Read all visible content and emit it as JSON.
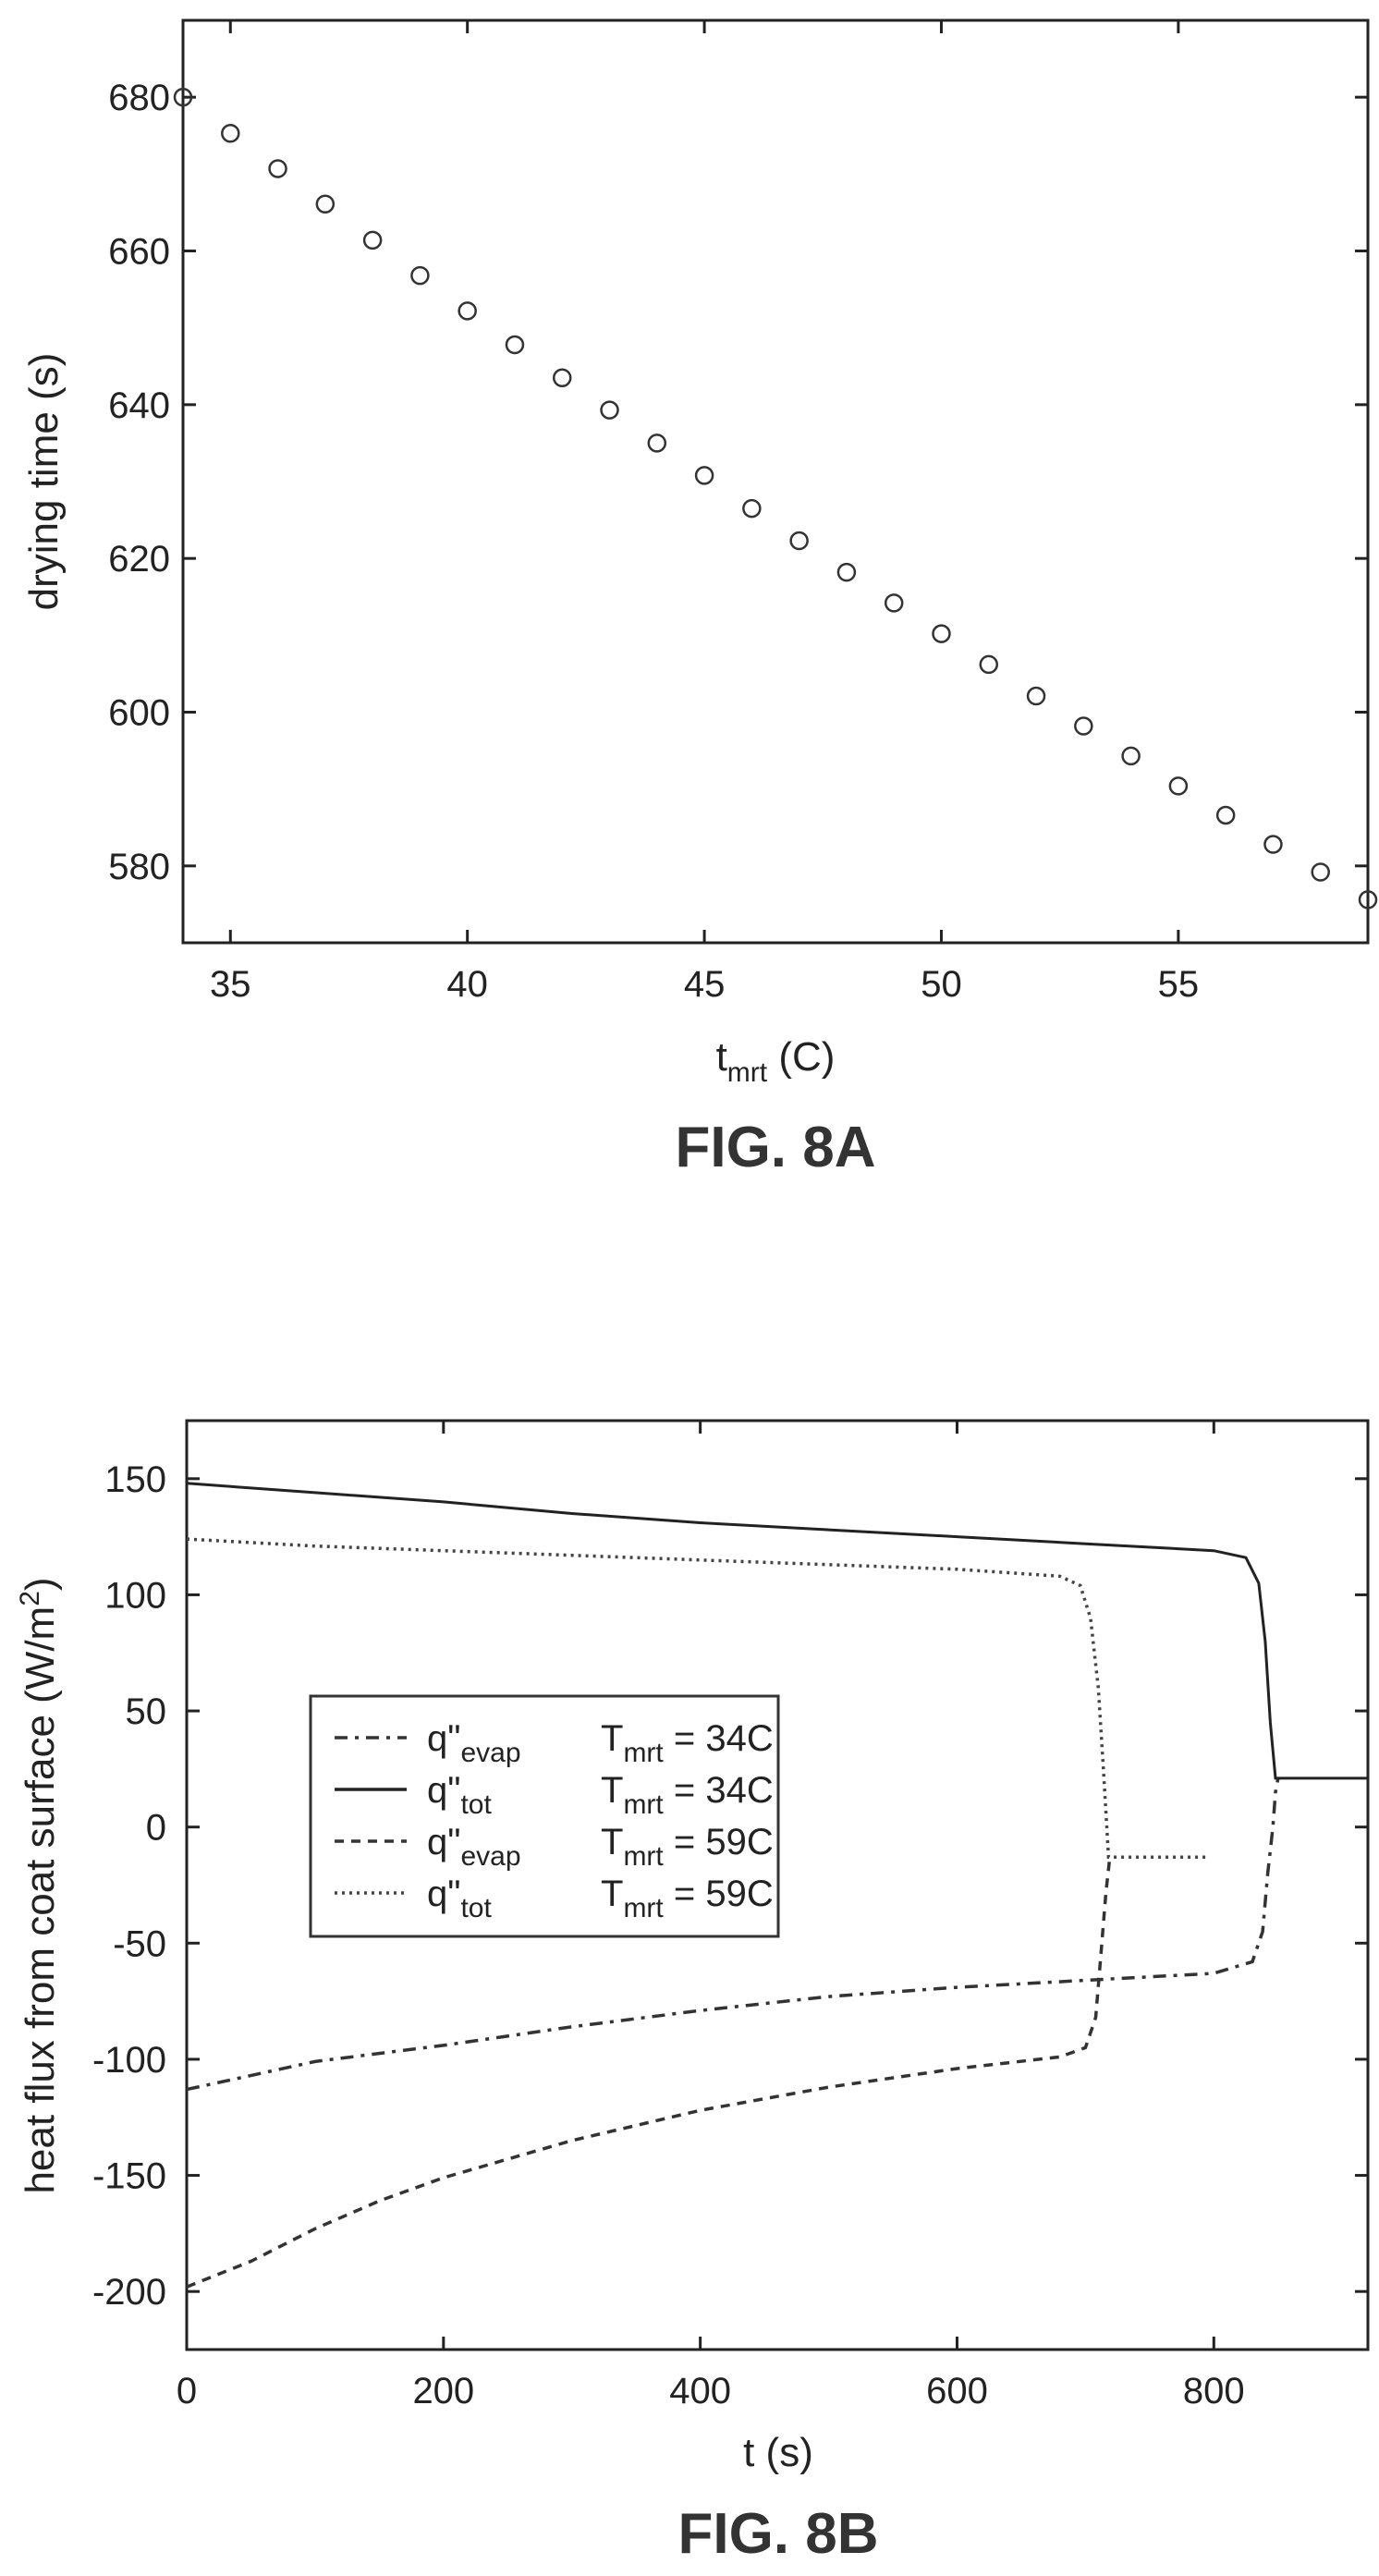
{
  "chart_data": [
    {
      "type": "scatter",
      "figure_label": "FIG. 8A",
      "xlabel": {
        "base": "t",
        "sub": "mrt",
        "unit": " (C)"
      },
      "ylabel": "drying time (s)",
      "xlim": [
        34,
        59
      ],
      "ylim": [
        570,
        690
      ],
      "xticks": [
        35,
        40,
        45,
        50,
        55
      ],
      "yticks": [
        580,
        600,
        620,
        640,
        660,
        680
      ],
      "marker": "circle-open",
      "grid": false,
      "x": [
        34,
        35,
        36,
        37,
        38,
        39,
        40,
        41,
        42,
        43,
        44,
        45,
        46,
        47,
        48,
        49,
        50,
        51,
        52,
        53,
        54,
        55,
        56,
        57,
        58,
        59
      ],
      "y": [
        680,
        675.3,
        670.7,
        666.1,
        661.4,
        656.8,
        652.2,
        647.8,
        643.5,
        639.3,
        635.0,
        630.8,
        626.5,
        622.3,
        618.2,
        614.2,
        610.2,
        606.2,
        602.1,
        598.2,
        594.3,
        590.4,
        586.6,
        582.8,
        579.2,
        575.6
      ]
    },
    {
      "type": "line",
      "figure_label": "FIG. 8B",
      "xlabel": "t (s)",
      "ylabel": {
        "text": "heat flux from coat surface (W/m",
        "sup": "2",
        "close": ")"
      },
      "xlim": [
        0,
        920
      ],
      "ylim": [
        -225,
        175
      ],
      "xticks": [
        0,
        200,
        400,
        600,
        800
      ],
      "yticks": [
        150,
        100,
        50,
        0,
        -50,
        -100,
        -150,
        -200
      ],
      "ytick_labels": [
        "150",
        "100",
        "50",
        "0",
        "-50",
        "-100",
        "-150",
        "-200"
      ],
      "legend_position": "center-left",
      "grid": false,
      "series": [
        {
          "q": "q\"",
          "q_sub": "evap",
          "t": "T",
          "t_sub": "mrt",
          "rest": " = 34C",
          "style": "dash-dot",
          "color": "#333333",
          "points": [
            [
              0,
              -113
            ],
            [
              100,
              -101
            ],
            [
              200,
              -94
            ],
            [
              300,
              -86
            ],
            [
              400,
              -79
            ],
            [
              500,
              -73
            ],
            [
              600,
              -69
            ],
            [
              700,
              -66
            ],
            [
              800,
              -63
            ],
            [
              830,
              -58
            ],
            [
              838,
              -45
            ],
            [
              842,
              -20
            ],
            [
              846,
              0
            ],
            [
              848,
              15
            ],
            [
              850,
              21
            ]
          ]
        },
        {
          "q": "q\"",
          "q_sub": "tot",
          "t": "T",
          "t_sub": "mrt",
          "rest": " = 34C",
          "style": "solid",
          "color": "#222222",
          "points": [
            [
              0,
              148
            ],
            [
              100,
              144
            ],
            [
              200,
              140
            ],
            [
              300,
              135
            ],
            [
              400,
              131
            ],
            [
              500,
              128
            ],
            [
              600,
              125
            ],
            [
              700,
              122
            ],
            [
              800,
              119
            ],
            [
              825,
              116
            ],
            [
              835,
              105
            ],
            [
              840,
              80
            ],
            [
              844,
              45
            ],
            [
              848,
              21
            ],
            [
              920,
              21
            ]
          ]
        },
        {
          "q": "q\"",
          "q_sub": "evap",
          "t": "T",
          "t_sub": "mrt",
          "rest": " = 59C",
          "style": "dashed",
          "color": "#333333",
          "points": [
            [
              0,
              -198
            ],
            [
              50,
              -187
            ],
            [
              100,
              -173
            ],
            [
              150,
              -161
            ],
            [
              200,
              -151
            ],
            [
              300,
              -135
            ],
            [
              400,
              -122
            ],
            [
              500,
              -112
            ],
            [
              600,
              -104
            ],
            [
              680,
              -99
            ],
            [
              700,
              -95
            ],
            [
              708,
              -82
            ],
            [
              712,
              -55
            ],
            [
              716,
              -28
            ],
            [
              719,
              -13
            ]
          ]
        },
        {
          "q": "q\"",
          "q_sub": "tot",
          "t": "T",
          "t_sub": "mrt",
          "rest": " = 59C",
          "style": "dotted",
          "color": "#444444",
          "points": [
            [
              0,
              124
            ],
            [
              100,
              121
            ],
            [
              200,
              119
            ],
            [
              300,
              117
            ],
            [
              400,
              115
            ],
            [
              500,
              113
            ],
            [
              600,
              111
            ],
            [
              680,
              108
            ],
            [
              696,
              104
            ],
            [
              704,
              90
            ],
            [
              710,
              60
            ],
            [
              714,
              25
            ],
            [
              718,
              -13
            ],
            [
              795,
              -13
            ]
          ]
        }
      ]
    }
  ]
}
